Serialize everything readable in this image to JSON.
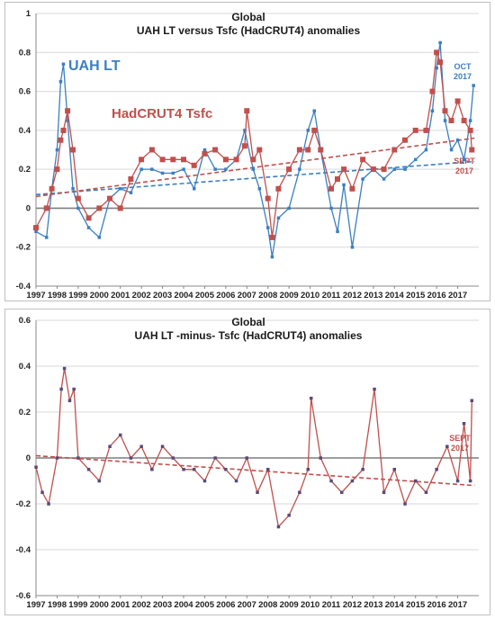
{
  "chart_data": [
    {
      "type": "line",
      "title": "Global",
      "subtitle": "UAH LT versus Tsfc (HadCRUT4) anomalies",
      "ylim": [
        -0.4,
        1.0
      ],
      "yticks": [
        "1",
        "0.8",
        "0.6",
        "0.4",
        "0.2",
        "0",
        "-0.2",
        "-0.4"
      ],
      "xlim": [
        1997.0,
        2018.0
      ],
      "xticks": [
        "1997",
        "1998",
        "1999",
        "2000",
        "2001",
        "2002",
        "2003",
        "2004",
        "2005",
        "2006",
        "2007",
        "2008",
        "2009",
        "2010",
        "2011",
        "2012",
        "2013",
        "2014",
        "2015",
        "2016",
        "2017"
      ],
      "grid": true,
      "series": [
        {
          "name": "UAH LT",
          "color": "#3a7fc1",
          "marker": "square-small",
          "x": [
            1997.0,
            1997.5,
            1997.75,
            1998.0,
            1998.17,
            1998.3,
            1998.5,
            1998.75,
            1999.0,
            1999.5,
            2000.0,
            2000.5,
            2001.0,
            2001.5,
            2002.0,
            2002.5,
            2003.0,
            2003.5,
            2004.0,
            2004.5,
            2005.0,
            2005.5,
            2006.0,
            2006.5,
            2006.9,
            2007.3,
            2007.6,
            2008.0,
            2008.2,
            2008.5,
            2009.0,
            2009.5,
            2009.9,
            2010.2,
            2010.5,
            2011.0,
            2011.3,
            2011.6,
            2012.0,
            2012.5,
            2013.0,
            2013.5,
            2014.0,
            2014.5,
            2015.0,
            2015.5,
            2015.8,
            2016.0,
            2016.17,
            2016.4,
            2016.7,
            2017.0,
            2017.3,
            2017.6,
            2017.75
          ],
          "y": [
            -0.12,
            -0.15,
            0.1,
            0.3,
            0.65,
            0.74,
            0.45,
            0.1,
            0.0,
            -0.1,
            -0.15,
            0.05,
            0.1,
            0.08,
            0.2,
            0.2,
            0.18,
            0.18,
            0.2,
            0.1,
            0.3,
            0.2,
            0.2,
            0.25,
            0.4,
            0.2,
            0.1,
            -0.1,
            -0.25,
            -0.05,
            0.0,
            0.2,
            0.4,
            0.5,
            0.3,
            0.0,
            -0.12,
            0.12,
            -0.2,
            0.15,
            0.2,
            0.15,
            0.2,
            0.2,
            0.25,
            0.3,
            0.5,
            0.72,
            0.85,
            0.45,
            0.3,
            0.35,
            0.25,
            0.45,
            0.63
          ]
        },
        {
          "name": "HadCRUT4 Tsfc",
          "color": "#c0504d",
          "marker": "square",
          "x": [
            1997.0,
            1997.5,
            1997.75,
            1998.0,
            1998.17,
            1998.3,
            1998.5,
            1998.75,
            1999.0,
            1999.5,
            2000.0,
            2000.5,
            2001.0,
            2001.5,
            2002.0,
            2002.5,
            2003.0,
            2003.5,
            2004.0,
            2004.5,
            2005.0,
            2005.5,
            2006.0,
            2006.5,
            2006.9,
            2007.0,
            2007.3,
            2007.6,
            2008.0,
            2008.2,
            2008.5,
            2009.0,
            2009.5,
            2009.9,
            2010.2,
            2010.5,
            2011.0,
            2011.3,
            2011.6,
            2012.0,
            2012.5,
            2013.0,
            2013.5,
            2014.0,
            2014.5,
            2015.0,
            2015.5,
            2015.8,
            2016.0,
            2016.17,
            2016.4,
            2016.7,
            2017.0,
            2017.3,
            2017.6,
            2017.67
          ],
          "y": [
            -0.1,
            0.0,
            0.1,
            0.2,
            0.35,
            0.4,
            0.5,
            0.3,
            0.05,
            -0.05,
            0.0,
            0.05,
            0.0,
            0.15,
            0.25,
            0.3,
            0.25,
            0.25,
            0.25,
            0.22,
            0.28,
            0.3,
            0.25,
            0.25,
            0.32,
            0.5,
            0.25,
            0.3,
            0.05,
            -0.15,
            0.1,
            0.2,
            0.3,
            0.3,
            0.4,
            0.3,
            0.1,
            0.15,
            0.2,
            0.1,
            0.25,
            0.2,
            0.2,
            0.3,
            0.35,
            0.4,
            0.4,
            0.6,
            0.8,
            0.75,
            0.5,
            0.45,
            0.55,
            0.45,
            0.4,
            0.3
          ]
        },
        {
          "name": "UAH LT trend",
          "color": "#3a7fc1",
          "style": "dashed",
          "x": [
            1997.0,
            2017.8
          ],
          "y": [
            0.07,
            0.24
          ]
        },
        {
          "name": "HadCRUT4 trend",
          "color": "#c0504d",
          "style": "dashed",
          "x": [
            1997.0,
            2017.8
          ],
          "y": [
            0.06,
            0.36
          ]
        }
      ],
      "annotations": [
        {
          "text": "UAH LT",
          "color": "#3a7fc1"
        },
        {
          "text": "HadCRUT4 Tsfc",
          "color": "#c0504d"
        },
        {
          "text": "OCT",
          "color": "#3a7fc1"
        },
        {
          "text": "2017",
          "color": "#3a7fc1"
        },
        {
          "text": "SEPT",
          "color": "#c0504d"
        },
        {
          "text": "2017",
          "color": "#c0504d"
        }
      ]
    },
    {
      "type": "line",
      "title": "Global",
      "subtitle": "UAH LT -minus- Tsfc (HadCRUT4) anomalies",
      "ylim": [
        -0.6,
        0.6
      ],
      "yticks": [
        "0.6",
        "0.4",
        "0.2",
        "0",
        "-0.2",
        "-0.4",
        "-0.6"
      ],
      "xlim": [
        1997.0,
        2018.0
      ],
      "xticks": [
        "1997",
        "1998",
        "1999",
        "2000",
        "2001",
        "2002",
        "2003",
        "2004",
        "2005",
        "2006",
        "2007",
        "2008",
        "2009",
        "2010",
        "2011",
        "2012",
        "2013",
        "2014",
        "2015",
        "2016",
        "2017"
      ],
      "grid": true,
      "series": [
        {
          "name": "UAH LT minus Tsfc",
          "color": "#c0504d",
          "marker": "square-small-purple",
          "x": [
            1997.0,
            1997.3,
            1997.6,
            1998.0,
            1998.2,
            1998.35,
            1998.6,
            1998.8,
            1999.0,
            1999.5,
            2000.0,
            2000.5,
            2001.0,
            2001.5,
            2002.0,
            2002.5,
            2003.0,
            2003.5,
            2004.0,
            2004.5,
            2005.0,
            2005.5,
            2006.0,
            2006.5,
            2007.0,
            2007.5,
            2008.0,
            2008.5,
            2009.0,
            2009.5,
            2009.9,
            2010.05,
            2010.5,
            2011.0,
            2011.5,
            2012.0,
            2012.5,
            2013.05,
            2013.5,
            2014.0,
            2014.5,
            2015.0,
            2015.5,
            2016.0,
            2016.5,
            2017.0,
            2017.3,
            2017.6,
            2017.67
          ],
          "y": [
            -0.04,
            -0.15,
            -0.2,
            0.0,
            0.3,
            0.39,
            0.25,
            0.3,
            0.0,
            -0.05,
            -0.1,
            0.05,
            0.1,
            0.0,
            0.05,
            -0.05,
            0.05,
            0.0,
            -0.05,
            -0.05,
            -0.1,
            0.0,
            -0.05,
            -0.1,
            0.0,
            -0.15,
            -0.05,
            -0.3,
            -0.25,
            -0.15,
            -0.05,
            0.26,
            0.0,
            -0.1,
            -0.15,
            -0.1,
            -0.05,
            0.3,
            -0.15,
            -0.05,
            -0.2,
            -0.1,
            -0.15,
            -0.05,
            0.05,
            -0.1,
            0.15,
            -0.1,
            0.25
          ]
        },
        {
          "name": "Difference trend",
          "color": "#c0504d",
          "style": "dashed",
          "x": [
            1997.0,
            2017.8
          ],
          "y": [
            0.01,
            -0.12
          ]
        }
      ],
      "annotations": [
        {
          "text": "SEPT",
          "color": "#c0504d"
        },
        {
          "text": "2017",
          "color": "#c0504d"
        }
      ]
    }
  ]
}
